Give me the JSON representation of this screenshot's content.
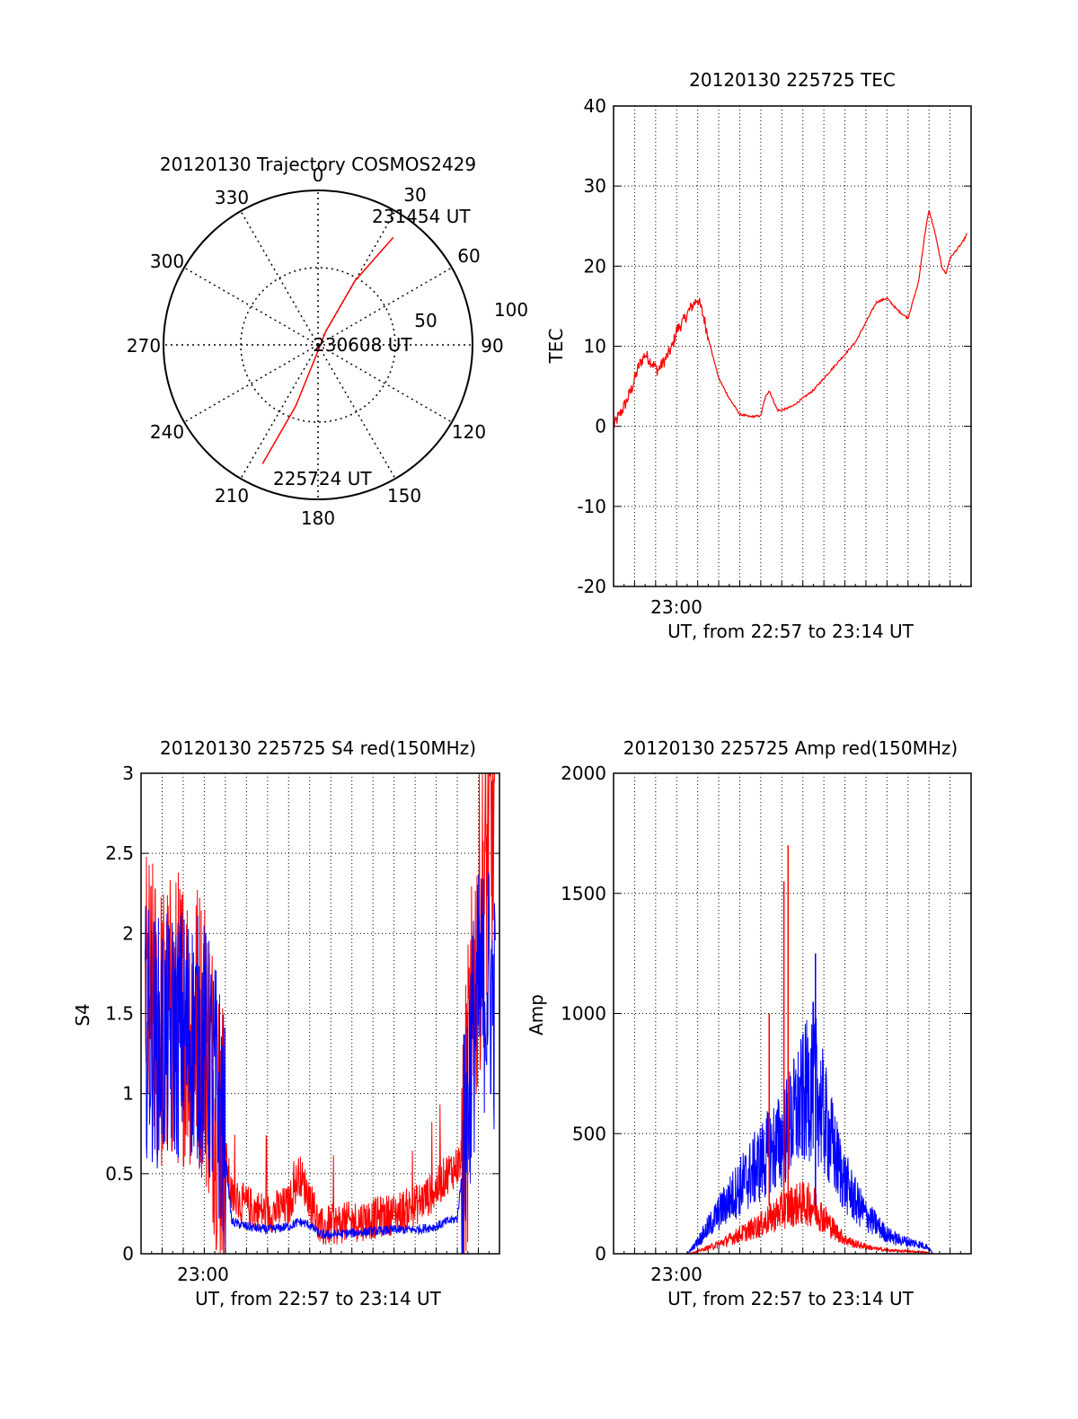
{
  "chart_data": [
    {
      "type": "polar",
      "title": "20120130 Trajectory COSMOS2429",
      "angle_labels": [
        "0",
        "30",
        "60",
        "90",
        "120",
        "150",
        "180",
        "210",
        "240",
        "270",
        "300",
        "330"
      ],
      "radius_labels": [
        "50",
        "100"
      ],
      "annotations": {
        "start": "225724 UT",
        "mid": "230608 UT",
        "end": "231454 UT"
      },
      "series": [
        {
          "color": "#ff0000",
          "points": [
            {
              "az": 205,
              "r": 85
            },
            {
              "az": 200,
              "r": 42
            },
            {
              "az": 195,
              "r": 12
            },
            {
              "az": 30,
              "r": 10
            },
            {
              "az": 30,
              "r": 48
            },
            {
              "az": 35,
              "r": 85
            }
          ]
        }
      ]
    },
    {
      "type": "line",
      "title": "20120130 225725 TEC",
      "ylabel": "TEC",
      "xlabel": "UT, from 22:57 to 23:14 UT",
      "xtick_label": "23:00",
      "ylim": [
        -20,
        40
      ],
      "yticks": [
        "-20",
        "-10",
        "0",
        "10",
        "20",
        "30",
        "40"
      ],
      "series": [
        {
          "color": "#ff0000",
          "x_minutes": [
            0,
            0.3,
            0.6,
            0.9,
            1.2,
            1.5,
            1.8,
            2.1,
            2.5,
            2.8,
            3.0,
            3.3,
            3.6,
            4.0,
            4.3,
            4.6,
            5.0,
            5.5,
            6.0,
            6.5,
            7.0,
            7.2,
            7.4,
            7.6,
            7.8,
            8.0,
            8.2,
            8.5,
            9.0,
            9.5,
            10.0,
            10.5,
            11.0,
            11.5,
            12.0,
            12.5,
            13.0,
            13.5,
            14.0,
            14.5,
            14.8,
            15.0,
            15.3,
            15.6,
            15.8,
            16.0,
            16.3,
            16.6,
            16.8
          ],
          "values": [
            0,
            1.5,
            3,
            5,
            7.5,
            9,
            8,
            7,
            8.5,
            10,
            12,
            13,
            14.5,
            16,
            13.5,
            10,
            6,
            3.5,
            1.5,
            1.2,
            1.3,
            3.5,
            4.5,
            3.2,
            2.0,
            2.0,
            2.2,
            2.5,
            3.5,
            4.5,
            6,
            7.5,
            9,
            10.5,
            13,
            15.5,
            16,
            14.5,
            13.5,
            18,
            24,
            27,
            24,
            20,
            19,
            21,
            22,
            23,
            24
          ]
        }
      ]
    },
    {
      "type": "line",
      "title": "20120130 225725 S4 red(150MHz)",
      "ylabel": "S4",
      "xlabel": "UT, from 22:57 to 23:14 UT",
      "xtick_label": "23:00",
      "ylim": [
        0,
        3
      ],
      "yticks": [
        "0",
        "0.5",
        "1",
        "1.5",
        "2",
        "2.5",
        "3"
      ],
      "series": [
        {
          "color": "#ff0000",
          "x_minutes": [
            0.2,
            1.0,
            2.0,
            3.0,
            3.8,
            4.3,
            5.0,
            6.0,
            7.0,
            7.5,
            8.0,
            8.5,
            9.0,
            10.0,
            11.0,
            12.0,
            13.0,
            14.0,
            14.5,
            15.0,
            15.3,
            15.6,
            16.0,
            16.5,
            16.8
          ],
          "values": [
            1.6,
            1.4,
            1.5,
            1.4,
            0.8,
            0.35,
            0.3,
            0.25,
            0.3,
            0.5,
            0.35,
            0.15,
            0.18,
            0.2,
            0.22,
            0.25,
            0.3,
            0.4,
            0.5,
            0.55,
            0.6,
            1.2,
            2.0,
            2.5,
            2.7
          ]
        },
        {
          "color": "#0000ff",
          "x_minutes": [
            0.2,
            1.0,
            2.0,
            3.0,
            3.8,
            4.3,
            5.0,
            6.0,
            7.0,
            7.5,
            8.0,
            8.5,
            9.0,
            10.0,
            11.0,
            12.0,
            13.0,
            14.0,
            14.5,
            15.0,
            15.3,
            15.6,
            16.0,
            16.5,
            16.8
          ],
          "values": [
            1.4,
            1.3,
            1.4,
            1.3,
            0.9,
            0.2,
            0.17,
            0.15,
            0.17,
            0.2,
            0.18,
            0.12,
            0.12,
            0.13,
            0.14,
            0.15,
            0.15,
            0.17,
            0.2,
            0.22,
            0.6,
            1.2,
            1.6,
            1.7,
            1.5
          ]
        }
      ]
    },
    {
      "type": "line",
      "title": "20120130 225725 Amp red(150MHz)",
      "ylabel": "Amp",
      "xlabel": "UT, from 22:57 to 23:14 UT",
      "xtick_label": "23:00",
      "ylim": [
        0,
        2000
      ],
      "yticks": [
        "0",
        "500",
        "1000",
        "1500",
        "2000"
      ],
      "series": [
        {
          "color": "#0000ff",
          "x_minutes": [
            0,
            2,
            3.5,
            4.0,
            5.0,
            6.0,
            7.0,
            7.5,
            8.0,
            8.5,
            9.0,
            9.5,
            10.0,
            10.5,
            11.0,
            11.5,
            12.0,
            12.5,
            13.0,
            13.5,
            14.0,
            14.5,
            14.9,
            15.2,
            16.8
          ],
          "values": [
            0,
            0,
            0,
            50,
            170,
            280,
            380,
            430,
            470,
            560,
            640,
            730,
            570,
            420,
            300,
            220,
            160,
            120,
            80,
            60,
            50,
            40,
            30,
            0,
            0
          ]
        },
        {
          "color": "#ff0000",
          "x_minutes": [
            0,
            2,
            3.5,
            4.0,
            5.0,
            6.0,
            7.0,
            7.5,
            8.0,
            8.5,
            9.0,
            9.5,
            10.0,
            10.5,
            11.0,
            11.5,
            12.0,
            12.5,
            13.0,
            13.5,
            14.0,
            14.5,
            14.9,
            15.2,
            16.8
          ],
          "values": [
            0,
            0,
            0,
            10,
            40,
            80,
            120,
            150,
            180,
            200,
            210,
            200,
            150,
            100,
            60,
            40,
            30,
            20,
            15,
            12,
            10,
            8,
            5,
            0,
            0
          ]
        }
      ],
      "spikes": [
        {
          "x_minutes": 7.4,
          "value": 1000,
          "color": "#ff0000"
        },
        {
          "x_minutes": 8.1,
          "value": 1550,
          "color": "#ff0000"
        },
        {
          "x_minutes": 8.3,
          "value": 1700,
          "color": "#ff0000"
        },
        {
          "x_minutes": 9.6,
          "value": 1250,
          "color": "#0000ff"
        }
      ]
    }
  ]
}
